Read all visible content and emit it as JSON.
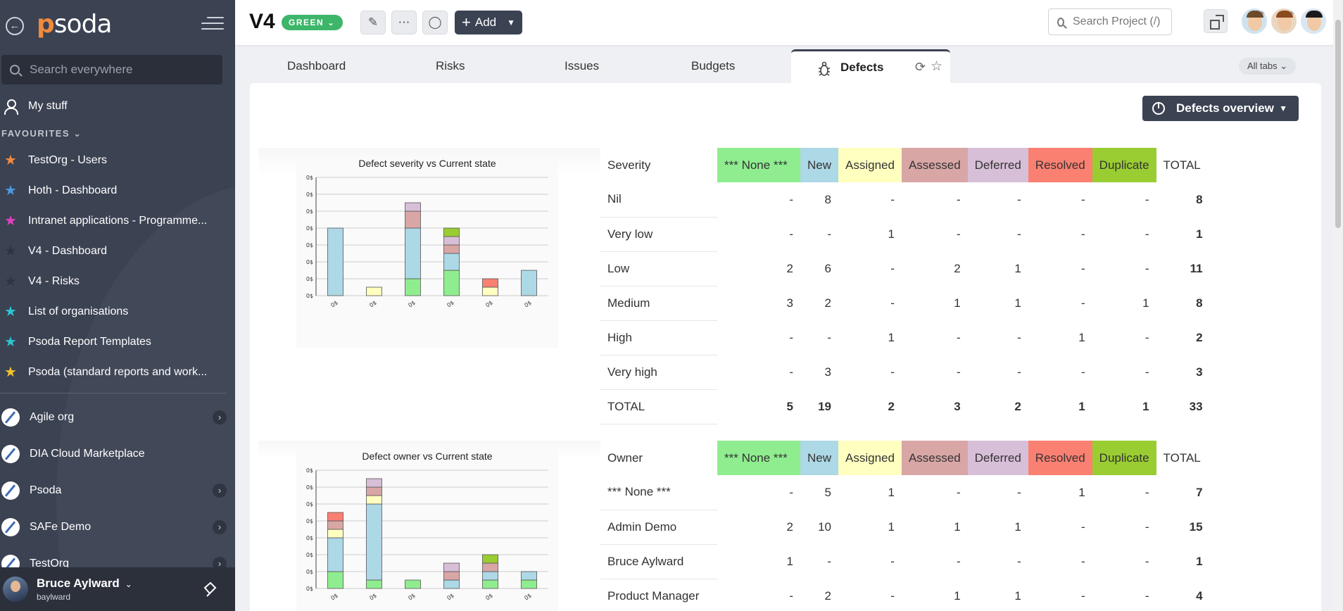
{
  "sidebar": {
    "logo": "psoda",
    "search_placeholder": "Search everywhere",
    "my_stuff": "My stuff",
    "favourites_title": "FAVOURITES",
    "favourites": [
      {
        "label": "TestOrg - Users",
        "color": "#f28a3c"
      },
      {
        "label": "Hoth - Dashboard",
        "color": "#4a9be0"
      },
      {
        "label": "Intranet applications - Programme...",
        "color": "#e040c0"
      },
      {
        "label": "V4 - Dashboard",
        "color": "#2f3440"
      },
      {
        "label": "V4 - Risks",
        "color": "#2f3440"
      },
      {
        "label": "List of organisations",
        "color": "#2ec4d0"
      },
      {
        "label": "Psoda Report Templates",
        "color": "#2ec4d0"
      },
      {
        "label": "Psoda (standard reports and work...",
        "color": "#f2c230"
      }
    ],
    "orgs": [
      {
        "label": "Agile org",
        "chevron": true
      },
      {
        "label": "DIA Cloud Marketplace",
        "chevron": false
      },
      {
        "label": "Psoda",
        "chevron": true
      },
      {
        "label": "SAFe Demo",
        "chevron": true
      },
      {
        "label": "TestOrg",
        "chevron": true
      }
    ],
    "user": {
      "name": "Bruce Aylward",
      "login": "baylward"
    }
  },
  "header": {
    "project_title": "V4",
    "status": "GREEN",
    "add_label": "Add",
    "search_placeholder": "Search Project (/)"
  },
  "tabs": {
    "items": [
      "Dashboard",
      "Risks",
      "Issues",
      "Budgets"
    ],
    "active": "Defects",
    "all_tabs": "All tabs"
  },
  "main": {
    "overview_button": "Defects overview",
    "states": [
      {
        "label": "*** None ***",
        "color": "#8fed8f"
      },
      {
        "label": "New",
        "color": "#add8e6"
      },
      {
        "label": "Assigned",
        "color": "#ffffc0"
      },
      {
        "label": "Assessed",
        "color": "#d9a6a6"
      },
      {
        "label": "Deferred",
        "color": "#d8bfd8"
      },
      {
        "label": "Resolved",
        "color": "#fa8072"
      },
      {
        "label": "Duplicate",
        "color": "#9acd32"
      }
    ],
    "total_label": "TOTAL",
    "severity_table": {
      "header": "Severity",
      "chart_title": "Defect severity vs Current state",
      "rows": [
        {
          "label": "Nil",
          "values": [
            "-",
            "8",
            "-",
            "-",
            "-",
            "-",
            "-"
          ],
          "total": "8"
        },
        {
          "label": "Very low",
          "values": [
            "-",
            "-",
            "1",
            "-",
            "-",
            "-",
            "-"
          ],
          "total": "1"
        },
        {
          "label": "Low",
          "values": [
            "2",
            "6",
            "-",
            "2",
            "1",
            "-",
            "-"
          ],
          "total": "11"
        },
        {
          "label": "Medium",
          "values": [
            "3",
            "2",
            "-",
            "1",
            "1",
            "-",
            "1"
          ],
          "total": "8"
        },
        {
          "label": "High",
          "values": [
            "-",
            "-",
            "1",
            "-",
            "-",
            "1",
            "-"
          ],
          "total": "2"
        },
        {
          "label": "Very high",
          "values": [
            "-",
            "3",
            "-",
            "-",
            "-",
            "-",
            "-"
          ],
          "total": "3"
        }
      ],
      "totals": {
        "label": "TOTAL",
        "values": [
          "5",
          "19",
          "2",
          "3",
          "2",
          "1",
          "1"
        ],
        "total": "33"
      }
    },
    "owner_table": {
      "header": "Owner",
      "chart_title": "Defect owner vs Current state",
      "rows": [
        {
          "label": "*** None ***",
          "values": [
            "-",
            "5",
            "1",
            "-",
            "-",
            "1",
            "-"
          ],
          "total": "7"
        },
        {
          "label": "Admin Demo",
          "values": [
            "2",
            "10",
            "1",
            "1",
            "1",
            "-",
            "-"
          ],
          "total": "15"
        },
        {
          "label": "Bruce Aylward",
          "values": [
            "1",
            "-",
            "-",
            "-",
            "-",
            "-",
            "-"
          ],
          "total": "1"
        },
        {
          "label": "Product Manager",
          "values": [
            "-",
            "2",
            "-",
            "1",
            "1",
            "-",
            "-"
          ],
          "total": "4"
        }
      ]
    }
  },
  "chart_data": [
    {
      "type": "bar",
      "title": "Defect severity vs Current state",
      "stacked": true,
      "categories": [
        "0$",
        "0$",
        "0$",
        "0$",
        "0$",
        "0$"
      ],
      "series": [
        {
          "name": "*** None ***",
          "values": [
            0,
            0,
            2,
            3,
            0,
            0
          ]
        },
        {
          "name": "New",
          "values": [
            8,
            0,
            6,
            2,
            0,
            3
          ]
        },
        {
          "name": "Assigned",
          "values": [
            0,
            1,
            0,
            0,
            1,
            0
          ]
        },
        {
          "name": "Assessed",
          "values": [
            0,
            0,
            2,
            1,
            0,
            0
          ]
        },
        {
          "name": "Deferred",
          "values": [
            0,
            0,
            1,
            1,
            0,
            0
          ]
        },
        {
          "name": "Resolved",
          "values": [
            0,
            0,
            0,
            0,
            1,
            0
          ]
        },
        {
          "name": "Duplicate",
          "values": [
            0,
            0,
            0,
            1,
            0,
            0
          ]
        }
      ],
      "ymax": 14,
      "ytick_label": "0$",
      "yticks": 8
    },
    {
      "type": "bar",
      "title": "Defect owner vs Current state",
      "stacked": true,
      "categories": [
        "0$",
        "0$",
        "0$",
        "0$",
        "0$",
        "0$"
      ],
      "series": [
        {
          "name": "*** None ***",
          "values": [
            2,
            1,
            1,
            0,
            1,
            1
          ]
        },
        {
          "name": "New",
          "values": [
            4,
            9,
            0,
            1,
            1,
            1
          ]
        },
        {
          "name": "Assigned",
          "values": [
            1,
            1,
            0,
            0,
            0,
            0
          ]
        },
        {
          "name": "Assessed",
          "values": [
            1,
            1,
            0,
            1,
            1,
            0
          ]
        },
        {
          "name": "Deferred",
          "values": [
            0,
            1,
            0,
            1,
            0,
            0
          ]
        },
        {
          "name": "Resolved",
          "values": [
            1,
            0,
            0,
            0,
            0,
            0
          ]
        },
        {
          "name": "Duplicate",
          "values": [
            0,
            0,
            0,
            0,
            1,
            0
          ]
        }
      ],
      "ymax": 14,
      "ytick_label": "0$",
      "yticks": 8
    }
  ]
}
